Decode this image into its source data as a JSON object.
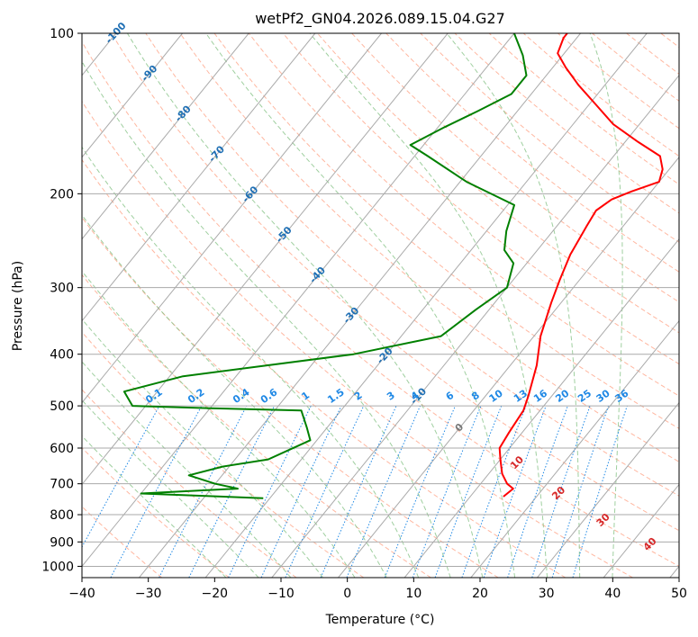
{
  "chart_data": {
    "type": "line",
    "title": "wetPf2_GN04.2026.089.15.04.G27",
    "xlabel": "Temperature (°C)",
    "ylabel": "Pressure (hPa)",
    "xlim": [
      -40,
      50
    ],
    "ylim": [
      1050,
      100
    ],
    "y_scale": "log",
    "skew": "skew-T",
    "grid": true,
    "x_ticks": [
      -40,
      -30,
      -20,
      -10,
      0,
      10,
      20,
      30,
      40,
      50
    ],
    "y_ticks": [
      100,
      200,
      300,
      400,
      500,
      600,
      700,
      800,
      900,
      1000
    ],
    "colors": {
      "temperature": "#ff0000",
      "dewpoint": "#008000",
      "isotherm": "#aaaaaa",
      "dry_adiabat": "#ff9f80",
      "moist_adiabat": "#7fbf7f",
      "mixing_ratio": "#1e88e5",
      "isotherm_label": "#1f6fb4",
      "wet_bulb_label": "#d62728"
    },
    "series": [
      {
        "name": "temperature",
        "points": [
          [
            15,
            740
          ],
          [
            15.5,
            715
          ],
          [
            14,
            700
          ],
          [
            12,
            670
          ],
          [
            10,
            630
          ],
          [
            8.5,
            600
          ],
          [
            8,
            560
          ],
          [
            7.5,
            510
          ],
          [
            6.5,
            480
          ],
          [
            4,
            420
          ],
          [
            1,
            370
          ],
          [
            -1.5,
            320
          ],
          [
            -3,
            290
          ],
          [
            -4.5,
            260
          ],
          [
            -5.5,
            230
          ],
          [
            -6,
            215
          ],
          [
            -5,
            205
          ],
          [
            -3,
            198
          ],
          [
            0,
            190
          ],
          [
            -1,
            180
          ],
          [
            -3,
            170
          ],
          [
            -8,
            160
          ],
          [
            -14,
            148
          ],
          [
            -19,
            136
          ],
          [
            -24,
            125
          ],
          [
            -28,
            116
          ],
          [
            -31,
            109
          ],
          [
            -32,
            102
          ],
          [
            -32,
            100
          ]
        ]
      },
      {
        "name": "dewpoint",
        "points": [
          [
            -21,
            745
          ],
          [
            -40,
            730
          ],
          [
            -26,
            715
          ],
          [
            -30,
            700
          ],
          [
            -35,
            675
          ],
          [
            -31,
            650
          ],
          [
            -25,
            630
          ],
          [
            -21,
            580
          ],
          [
            -23,
            550
          ],
          [
            -26,
            510
          ],
          [
            -40,
            505
          ],
          [
            -52,
            500
          ],
          [
            -55,
            470
          ],
          [
            -48,
            440
          ],
          [
            -25,
            400
          ],
          [
            -14,
            370
          ],
          [
            -12,
            330
          ],
          [
            -10,
            300
          ],
          [
            -12,
            270
          ],
          [
            -15,
            255
          ],
          [
            -17,
            235
          ],
          [
            -19,
            210
          ],
          [
            -29,
            190
          ],
          [
            -38,
            170
          ],
          [
            -42,
            162
          ],
          [
            -39,
            150
          ],
          [
            -36,
            140
          ],
          [
            -33,
            130
          ],
          [
            -33,
            120
          ],
          [
            -36,
            110
          ],
          [
            -40,
            100
          ]
        ]
      }
    ],
    "isotherm_labels": [
      "-100",
      "-90",
      "-80",
      "-70",
      "-60",
      "-50",
      "-40",
      "-30",
      "-20",
      "-10"
    ],
    "mixing_ratio_labels": [
      "0.1",
      "0.2",
      "0.4",
      "0.6",
      "1",
      "1.5",
      "2",
      "3",
      "4",
      "6",
      "8",
      "10",
      "13",
      "16",
      "20",
      "25",
      "30",
      "36"
    ],
    "wet_bulb_labels": [
      "0",
      "10",
      "20",
      "30",
      "40"
    ]
  }
}
